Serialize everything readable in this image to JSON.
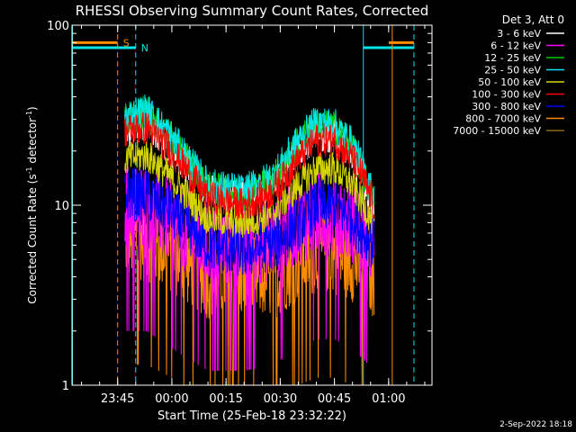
{
  "chart_data": {
    "type": "line",
    "title": "RHESSI Observing Summary Count Rates, Corrected",
    "xlabel": "Start Time (25-Feb-18 23:32:22)",
    "ylabel": "Corrected Count Rate (s⁻¹ detector⁻¹)",
    "ylabel_main": "Corrected Count Rate (s",
    "ylabel_sup1": "-1",
    "ylabel_mid": " detector",
    "ylabel_sup2": "-1",
    "ylabel_end": ")",
    "x_range": [
      "23:32:22",
      "01:12:00"
    ],
    "y_scale": "log",
    "ylim": [
      1,
      100
    ],
    "x_ticks": [
      "23:45",
      "00:00",
      "00:15",
      "00:30",
      "00:45",
      "01:00"
    ],
    "y_ticks": [
      "1",
      "10",
      "100"
    ],
    "legend_header": "Det 3, Att 0",
    "legend_position": "top-right, outside plot",
    "footer_date": "2-Sep-2022 18:18",
    "flags": [
      {
        "label": "S",
        "color": "#ff8c00",
        "level": 80,
        "segments": [
          [
            "23:32:22",
            "23:45:00"
          ],
          [
            "01:00:00",
            "01:07:00"
          ]
        ]
      },
      {
        "label": "N",
        "color": "#00e5e5",
        "level": 75,
        "segments": [
          [
            "23:32:22",
            "23:50:00"
          ],
          [
            "00:53:00",
            "01:07:00"
          ]
        ]
      }
    ],
    "vertical_lines": [
      {
        "time": "23:32:30",
        "color": "#00e5e5",
        "style": "solid"
      },
      {
        "time": "23:45:00",
        "color": "#ff8c00",
        "style": "dashed"
      },
      {
        "time": "23:50:00",
        "color": "#00e5e5",
        "style": "dashed"
      },
      {
        "time": "00:53:00",
        "color": "#00e5e5",
        "style": "solid"
      },
      {
        "time": "01:01:00",
        "color": "#ff8c00",
        "style": "solid"
      },
      {
        "time": "01:07:00",
        "color": "#00e5e5",
        "style": "dashed"
      }
    ],
    "data_start": "23:47:00",
    "data_end": "00:56:00",
    "series": [
      {
        "name": "3 - 6 keV",
        "color": "#ffffff",
        "envelope": [
          [
            "23:47",
            26
          ],
          [
            "23:53",
            28
          ],
          [
            "00:00",
            20
          ],
          [
            "00:10",
            12
          ],
          [
            "00:20",
            11
          ],
          [
            "00:28",
            13
          ],
          [
            "00:35",
            20
          ],
          [
            "00:40",
            25
          ],
          [
            "00:45",
            24
          ],
          [
            "00:50",
            19
          ],
          [
            "00:53",
            14
          ],
          [
            "00:56",
            10
          ]
        ]
      },
      {
        "name": "6 - 12 keV",
        "color": "#ff00ff",
        "envelope": [
          [
            "23:47",
            10
          ],
          [
            "23:53",
            10
          ],
          [
            "00:00",
            8
          ],
          [
            "00:10",
            6
          ],
          [
            "00:20",
            6
          ],
          [
            "00:28",
            6.5
          ],
          [
            "00:35",
            8
          ],
          [
            "00:40",
            9
          ],
          [
            "00:45",
            9
          ],
          [
            "00:50",
            8
          ],
          [
            "00:53",
            7
          ],
          [
            "00:56",
            6
          ]
        ]
      },
      {
        "name": "12 - 25 keV",
        "color": "#00cc00",
        "envelope": [
          [
            "23:47",
            30
          ],
          [
            "23:53",
            33
          ],
          [
            "00:00",
            23
          ],
          [
            "00:10",
            12.5
          ],
          [
            "00:20",
            11.5
          ],
          [
            "00:28",
            14
          ],
          [
            "00:35",
            22
          ],
          [
            "00:40",
            28
          ],
          [
            "00:45",
            27
          ],
          [
            "00:50",
            21
          ],
          [
            "00:53",
            15
          ],
          [
            "00:56",
            10.5
          ]
        ]
      },
      {
        "name": "25 - 50 keV",
        "color": "#00e5e5",
        "envelope": [
          [
            "23:47",
            31
          ],
          [
            "23:53",
            34
          ],
          [
            "00:00",
            24
          ],
          [
            "00:10",
            13
          ],
          [
            "00:20",
            12
          ],
          [
            "00:28",
            14.5
          ],
          [
            "00:35",
            23
          ],
          [
            "00:40",
            29
          ],
          [
            "00:45",
            28
          ],
          [
            "00:50",
            22
          ],
          [
            "00:53",
            16
          ],
          [
            "00:56",
            11
          ]
        ]
      },
      {
        "name": "50 - 100 keV",
        "color": "#d4d400",
        "envelope": [
          [
            "23:47",
            18
          ],
          [
            "23:53",
            19
          ],
          [
            "00:00",
            14
          ],
          [
            "00:10",
            8.5
          ],
          [
            "00:20",
            8
          ],
          [
            "00:28",
            9
          ],
          [
            "00:35",
            13
          ],
          [
            "00:40",
            16
          ],
          [
            "00:45",
            16
          ],
          [
            "00:50",
            13
          ],
          [
            "00:53",
            10
          ],
          [
            "00:56",
            8
          ]
        ]
      },
      {
        "name": "100 - 300 keV",
        "color": "#ff0000",
        "envelope": [
          [
            "23:47",
            26
          ],
          [
            "23:53",
            27
          ],
          [
            "00:00",
            20
          ],
          [
            "00:10",
            11
          ],
          [
            "00:20",
            10
          ],
          [
            "00:28",
            12
          ],
          [
            "00:35",
            18
          ],
          [
            "00:40",
            23
          ],
          [
            "00:45",
            23
          ],
          [
            "00:50",
            18
          ],
          [
            "00:53",
            14
          ],
          [
            "00:56",
            10
          ]
        ]
      },
      {
        "name": "300 - 800 keV",
        "color": "#0000ff",
        "envelope": [
          [
            "23:47",
            11.5
          ],
          [
            "23:53",
            11.5
          ],
          [
            "00:00",
            9
          ],
          [
            "00:10",
            6
          ],
          [
            "00:20",
            5.5
          ],
          [
            "00:28",
            6
          ],
          [
            "00:35",
            8
          ],
          [
            "00:40",
            10
          ],
          [
            "00:45",
            10
          ],
          [
            "00:50",
            8.5
          ],
          [
            "00:53",
            7
          ],
          [
            "00:56",
            6
          ]
        ]
      },
      {
        "name": "800 - 7000 keV",
        "color": "#ff8c00",
        "envelope": [
          [
            "23:47",
            6.5
          ],
          [
            "23:53",
            6.5
          ],
          [
            "00:00",
            5.5
          ],
          [
            "00:10",
            4
          ],
          [
            "00:20",
            4
          ],
          [
            "00:28",
            4
          ],
          [
            "00:35",
            5
          ],
          [
            "00:40",
            5.5
          ],
          [
            "00:45",
            5.5
          ],
          [
            "00:50",
            5
          ],
          [
            "00:53",
            4.5
          ],
          [
            "00:56",
            4
          ]
        ]
      },
      {
        "name": "7000 - 15000 keV",
        "color": "#8b6914",
        "envelope": []
      }
    ]
  }
}
